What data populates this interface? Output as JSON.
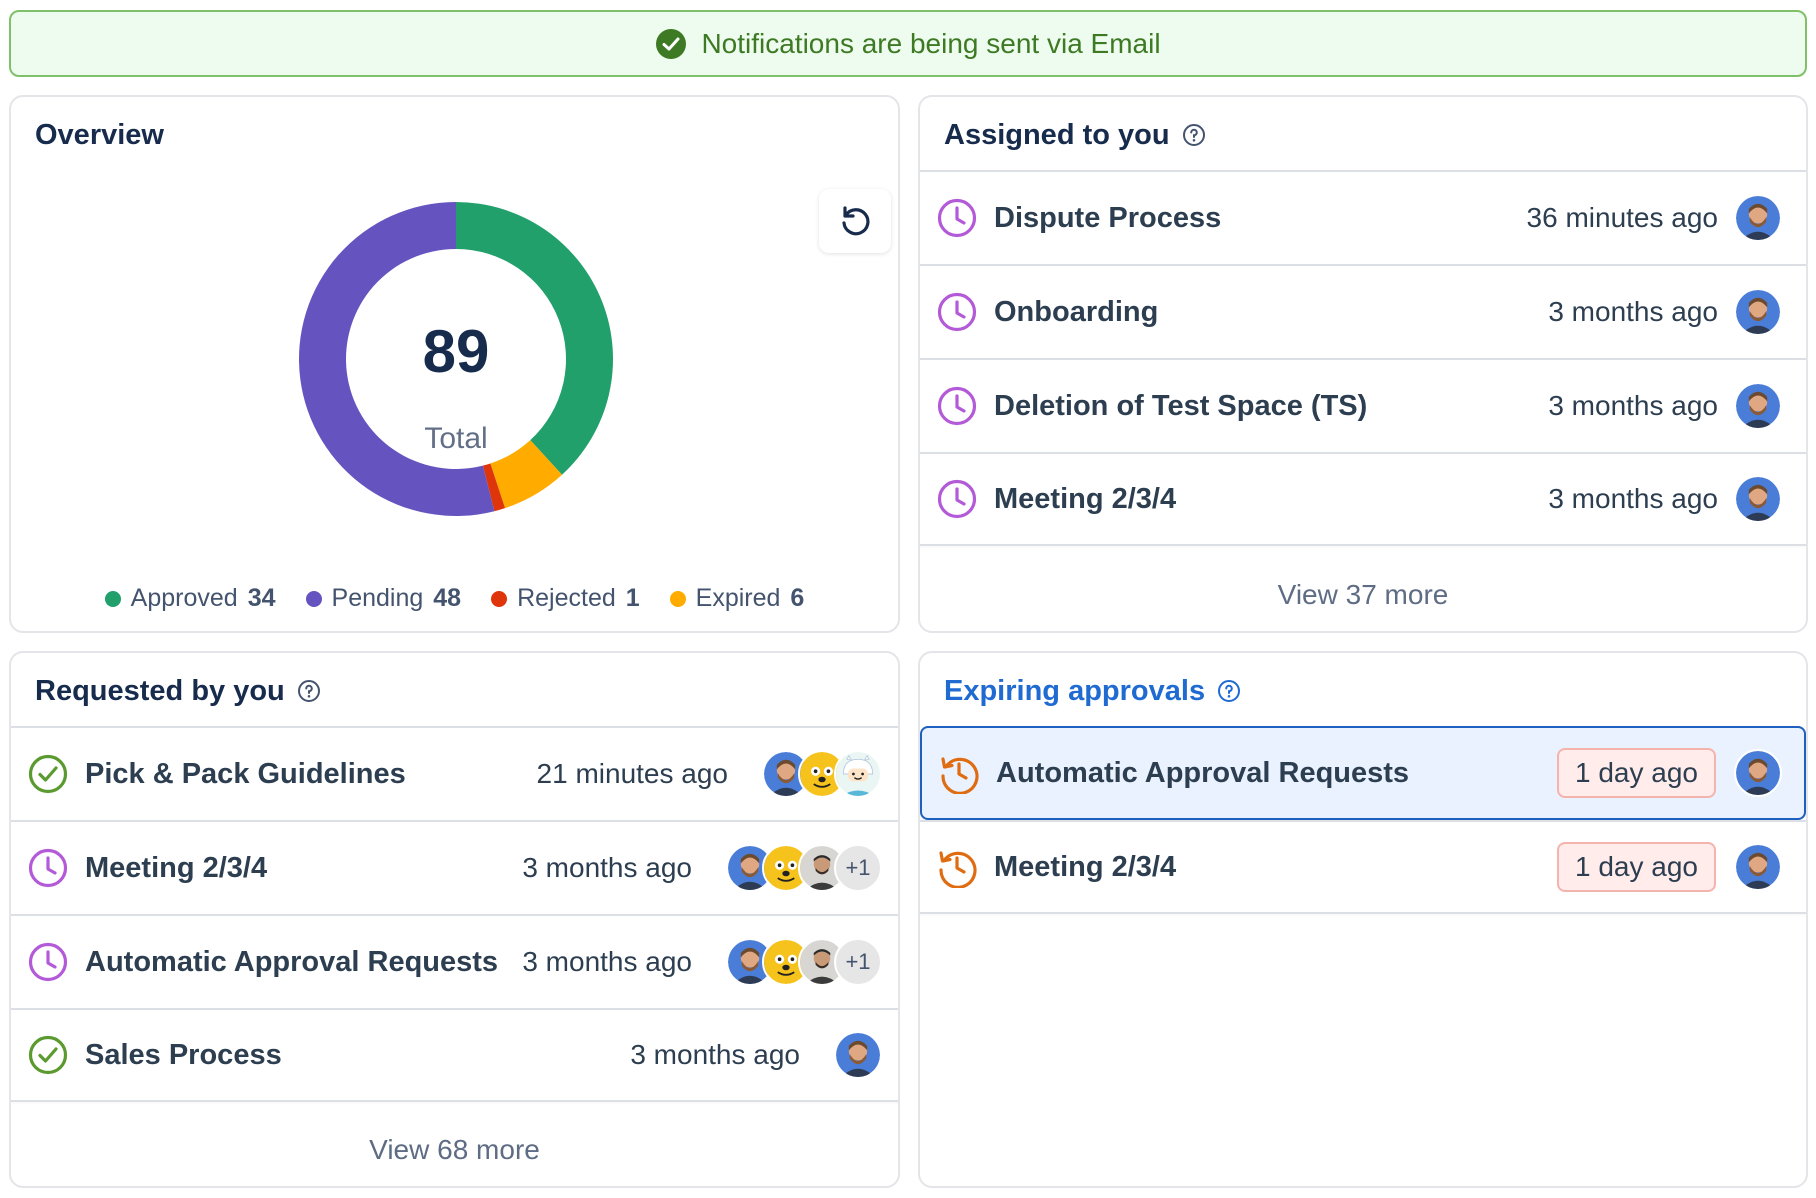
{
  "banner": {
    "text": "Notifications are being sent via Email"
  },
  "overview": {
    "title": "Overview",
    "total": "89",
    "total_label": "Total",
    "legend": [
      {
        "label": "Approved",
        "value": "34",
        "color": "#22a06b"
      },
      {
        "label": "Pending",
        "value": "48",
        "color": "#6554c0"
      },
      {
        "label": "Rejected",
        "value": "1",
        "color": "#de350b"
      },
      {
        "label": "Expired",
        "value": "6",
        "color": "#ffab00"
      }
    ]
  },
  "chart_data": {
    "type": "pie",
    "categories": [
      "Approved",
      "Pending",
      "Rejected",
      "Expired"
    ],
    "values": [
      34,
      48,
      1,
      6
    ],
    "colors": [
      "#22a06b",
      "#6554c0",
      "#de350b",
      "#ffab00"
    ],
    "legend_position": "bottom"
  },
  "assigned": {
    "title": "Assigned to you",
    "rows": [
      {
        "name": "Dispute Process",
        "time": "36 minutes ago"
      },
      {
        "name": "Onboarding",
        "time": "3 months ago"
      },
      {
        "name": "Deletion of Test Space (TS)",
        "time": "3 months ago"
      },
      {
        "name": "Meeting 2/3/4",
        "time": "3 months ago"
      }
    ],
    "view_more": "View 37 more"
  },
  "requested": {
    "title": "Requested by you",
    "rows": [
      {
        "name": "Pick & Pack Guidelines",
        "time": "21 minutes ago",
        "status": "approved"
      },
      {
        "name": "Meeting 2/3/4",
        "time": "3 months ago",
        "status": "pending",
        "more": "+1"
      },
      {
        "name": "Automatic Approval Requests",
        "time": "3 months ago",
        "status": "pending",
        "more": "+1"
      },
      {
        "name": "Sales Process",
        "time": "3 months ago",
        "status": "approved"
      }
    ],
    "view_more": "View 68 more"
  },
  "expiring": {
    "title": "Expiring approvals",
    "rows": [
      {
        "name": "Automatic Approval Requests",
        "time": "1 day ago"
      },
      {
        "name": "Meeting 2/3/4",
        "time": "1 day ago"
      }
    ]
  },
  "icons": {
    "banner": "check-circle-icon",
    "refresh": "refresh-icon",
    "help": "question-circle-icon",
    "pending": "clock-icon",
    "approved": "check-circle-icon",
    "expiring": "history-icon"
  }
}
